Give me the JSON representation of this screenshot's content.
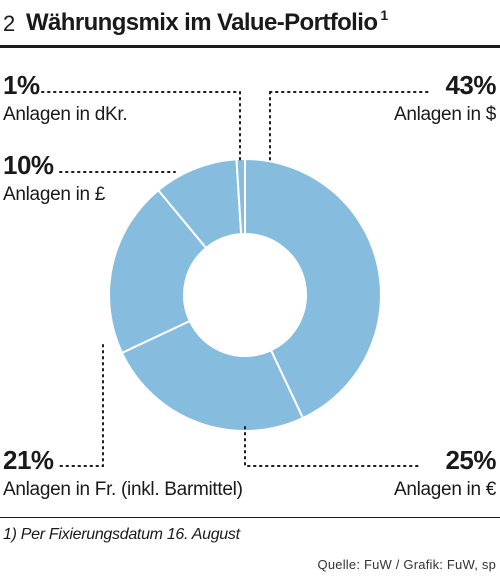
{
  "header": {
    "number": "2",
    "title": "Währungsmix im Value-Portfolio",
    "superscript": "1"
  },
  "chart_data": {
    "type": "pie",
    "donut": true,
    "color": "#86bddf",
    "slices": [
      {
        "label": "Anlagen in $",
        "percent_label": "43%",
        "value": 43
      },
      {
        "label": "Anlagen in €",
        "percent_label": "25%",
        "value": 25
      },
      {
        "label": "Anlagen in Fr. (inkl. Barmittel)",
        "percent_label": "21%",
        "value": 21
      },
      {
        "label": "Anlagen in £",
        "percent_label": "10%",
        "value": 10
      },
      {
        "label": "Anlagen in dKr.",
        "percent_label": "1%",
        "value": 1
      }
    ]
  },
  "footnote": "1) Per Fixierungsdatum 16. August",
  "source": "Quelle: FuW / Grafik: FuW, sp"
}
